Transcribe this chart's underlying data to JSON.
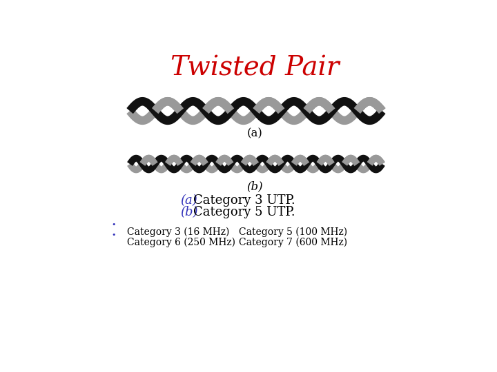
{
  "title": "Twisted Pair",
  "title_color": "#cc0000",
  "title_fontsize": 28,
  "bg_color": "#ffffff",
  "label_a": "(a)",
  "label_b": "(b)",
  "desc_color_ab": "#3333bb",
  "desc_color_text": "#000000",
  "bullet_color": "#3333bb",
  "bullet1_col1": "Category 3 (16 MHz)",
  "bullet1_col2": "Category 5 (100 MHz)",
  "bullet2_col1": "Category 6 (250 MHz)",
  "bullet2_col2": "Category 7 (600 MHz)",
  "wire_color_black": "#111111",
  "wire_color_gray": "#999999",
  "cat3_twist_freq": 5,
  "cat5_twist_freq": 10,
  "wire_lw_a": 9,
  "wire_lw_b": 7,
  "cat3_amplitude": 18,
  "cat5_amplitude": 11
}
